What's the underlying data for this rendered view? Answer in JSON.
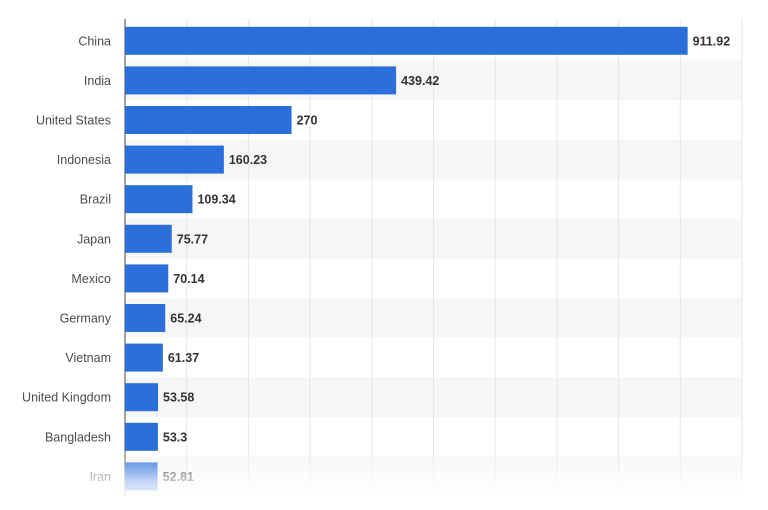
{
  "chart_data": {
    "type": "bar",
    "orientation": "horizontal",
    "categories": [
      "China",
      "India",
      "United States",
      "Indonesia",
      "Brazil",
      "Japan",
      "Mexico",
      "Germany",
      "Vietnam",
      "United Kingdom",
      "Bangladesh",
      "Iran"
    ],
    "values": [
      911.92,
      439.42,
      270,
      160.23,
      109.34,
      75.77,
      70.14,
      65.24,
      61.37,
      53.58,
      53.3,
      52.81
    ],
    "value_labels": [
      "911.92",
      "439.42",
      "270",
      "160.23",
      "109.34",
      "75.77",
      "70.14",
      "65.24",
      "61.37",
      "53.58",
      "53.3",
      "52.81"
    ],
    "xlim": [
      0,
      1000
    ],
    "grid": true,
    "bar_color": "#2b6fdb",
    "alt_row_color": "#f6f6f6",
    "grid_color": "#e6e6e6"
  }
}
